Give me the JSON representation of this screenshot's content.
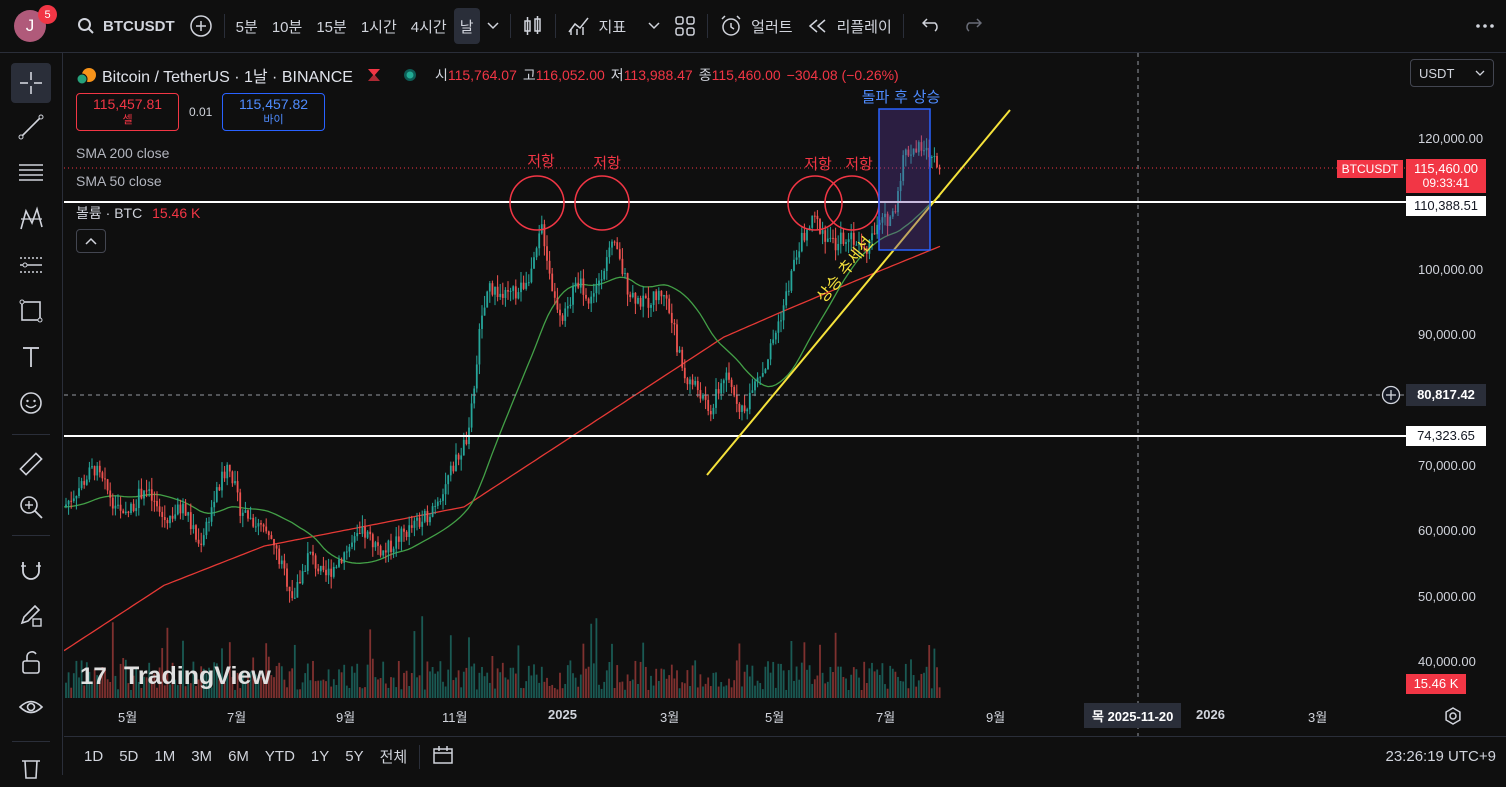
{
  "user": {
    "initial": "J",
    "notifications": "5"
  },
  "toolbar": {
    "symbol": "BTCUSDT",
    "intervals": [
      "5분",
      "10분",
      "15분",
      "1시간",
      "4시간",
      "날"
    ],
    "indicators_label": "지표",
    "alert_label": "얼러트",
    "replay_label": "리플레이"
  },
  "legend": {
    "title": "Bitcoin / TetherUS · 1날 · BINANCE",
    "o_label": "시",
    "o": "115,764.07",
    "h_label": "고",
    "h": "116,052.00",
    "l_label": "저",
    "l": "113,988.47",
    "c_label": "종",
    "c": "115,460.00",
    "change": "−304.08 (−0.26%)",
    "sell_price": "115,457.81",
    "sell_label": "셀",
    "spread": "0.01",
    "buy_price": "115,457.82",
    "buy_label": "바이",
    "sma200": "SMA 200 close",
    "sma50": "SMA 50 close",
    "volume_label": "볼륨 · BTC",
    "volume_value": "15.46 K"
  },
  "currency": "USDT",
  "annotations": {
    "resistance": "저항",
    "breakout": "돌파 후 상승",
    "trendline": "상승 추세선"
  },
  "price_axis": [
    "120,000.00",
    "100,000.00",
    "90,000.00",
    "70,000.00",
    "60,000.00",
    "50,000.00",
    "40,000.00"
  ],
  "price_tags": {
    "symbol": "BTCUSDT",
    "last": "115,460.00",
    "countdown": "09:33:41",
    "level1": "110,388.51",
    "crosshair": "80,817.42",
    "level2": "74,323.65",
    "volume": "15.46 K"
  },
  "time_axis": [
    "5월",
    "7월",
    "9월",
    "11월",
    "2025",
    "3월",
    "5월",
    "7월",
    "9월",
    "2026",
    "3월"
  ],
  "time_cursor": "목 2025-11-20",
  "watermark": "TradingView",
  "ranges": [
    "1D",
    "5D",
    "1M",
    "3M",
    "6M",
    "YTD",
    "1Y",
    "5Y",
    "전체"
  ],
  "clock": "23:26:19 UTC+9",
  "colors": {
    "up": "#26a69a",
    "down": "#ef5350",
    "sma200": "#e53935",
    "sma50": "#43a047",
    "trend": "#f5e23b",
    "accent": "#2962ff"
  }
}
